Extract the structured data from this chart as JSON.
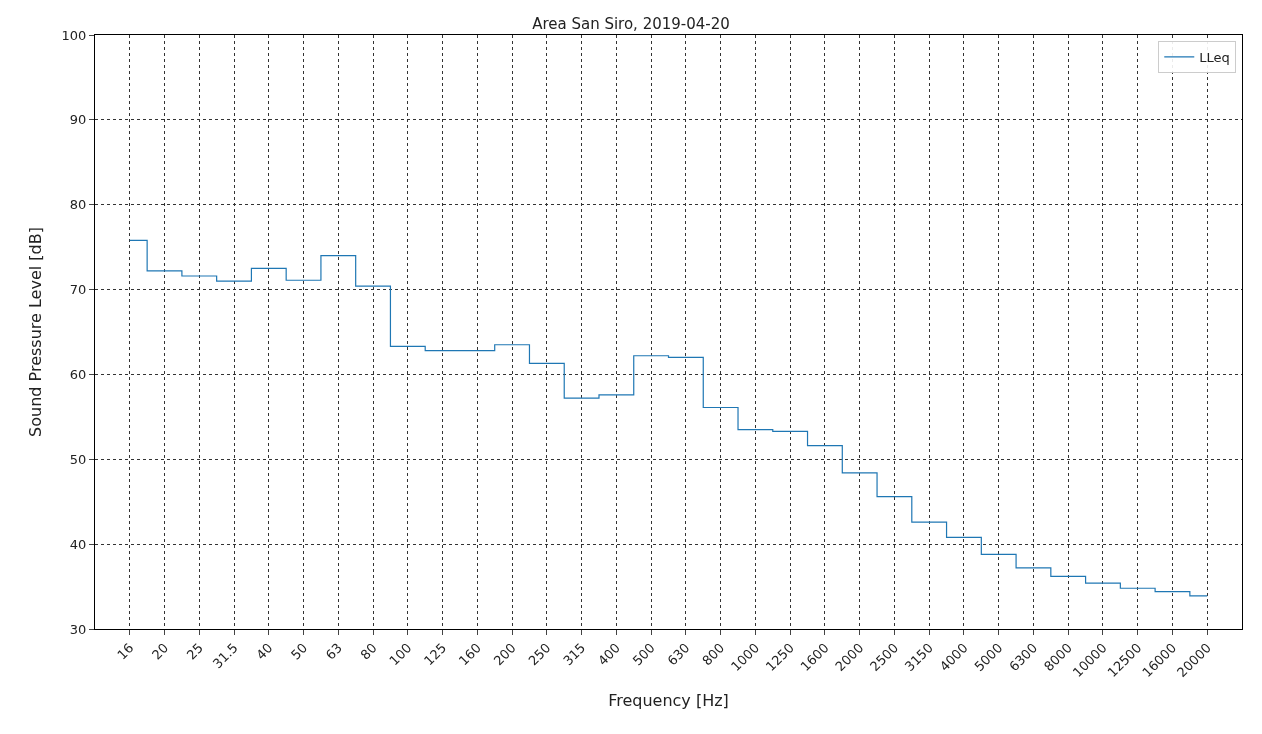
{
  "chart_data": {
    "type": "step",
    "title": "Area San Siro, 2019-04-20",
    "xlabel": "Frequency [Hz]",
    "ylabel": "Sound Pressure Level [dB]",
    "categories": [
      "16",
      "20",
      "25",
      "31.5",
      "40",
      "50",
      "63",
      "80",
      "100",
      "125",
      "160",
      "200",
      "250",
      "315",
      "400",
      "500",
      "630",
      "800",
      "1000",
      "1250",
      "1600",
      "2000",
      "2500",
      "3150",
      "4000",
      "5000",
      "6300",
      "8000",
      "10000",
      "12500",
      "16000",
      "20000"
    ],
    "series": [
      {
        "name": "LLeq",
        "color": "#1f77b4",
        "values": [
          75.8,
          72.2,
          71.6,
          71.0,
          72.5,
          71.1,
          74.0,
          70.4,
          63.3,
          62.8,
          62.8,
          63.5,
          61.3,
          57.2,
          57.6,
          62.2,
          62.0,
          56.1,
          53.5,
          53.3,
          51.6,
          48.4,
          45.6,
          42.6,
          40.8,
          38.8,
          37.2,
          36.2,
          35.4,
          34.8,
          34.4,
          33.9
        ]
      }
    ],
    "ylim": [
      30,
      100
    ],
    "yticks": [
      30,
      40,
      50,
      60,
      70,
      80,
      90,
      100
    ],
    "grid": true,
    "legend": "top right",
    "line_style": "solid",
    "marker": "none"
  }
}
